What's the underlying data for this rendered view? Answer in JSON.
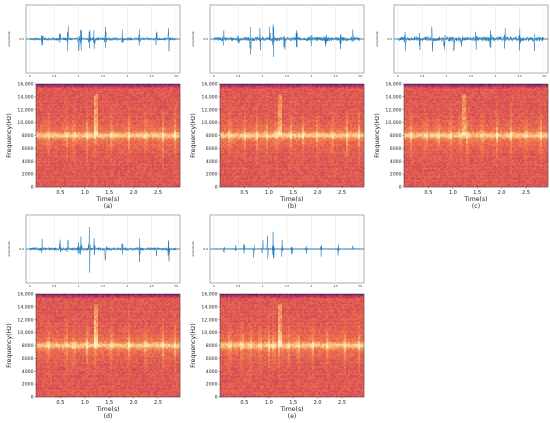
{
  "chart_data": [
    {
      "panel_label": "(a)",
      "type": "figure",
      "waveform": {
        "type": "line",
        "ylabel": "amplitude",
        "y_tick_labels": [
          "0.0"
        ],
        "x_tick_labels": [
          "0",
          "0.5",
          "1",
          "1.5",
          "2",
          "2.5",
          "3.0"
        ],
        "line_color": "#1f77b4",
        "baseline_amplitude": 0.05,
        "bursts": [
          {
            "t": 0.25,
            "a": 0.35
          },
          {
            "t": 0.62,
            "a": 0.45
          },
          {
            "t": 0.78,
            "a": 0.5
          },
          {
            "t": 1.0,
            "a": 0.45
          },
          {
            "t": 1.05,
            "a": 0.55
          },
          {
            "t": 1.22,
            "a": 0.95
          },
          {
            "t": 1.32,
            "a": 0.5
          },
          {
            "t": 1.55,
            "a": 0.45
          },
          {
            "t": 1.9,
            "a": 0.35
          },
          {
            "t": 2.25,
            "a": 0.4
          },
          {
            "t": 2.6,
            "a": 0.35
          },
          {
            "t": 2.85,
            "a": 0.45
          }
        ]
      },
      "spectrogram": {
        "type": "heatmap",
        "xlabel": "Time(s)",
        "ylabel": "Frequency(Hz)",
        "x_ticks": [
          0.5,
          1.0,
          1.5,
          2.0,
          2.5
        ],
        "x_tick_labels": [
          "0.5",
          "1.0",
          "1.5",
          "2.0",
          "2.5"
        ],
        "xlim": [
          0,
          2.95
        ],
        "y_ticks": [
          0,
          2000,
          4000,
          6000,
          8000,
          10000,
          12000,
          14000,
          16000
        ],
        "y_tick_labels": [
          "0",
          "2000",
          "4000",
          "6000",
          "8000",
          "10,000",
          "12,000",
          "14,000",
          "16,000"
        ],
        "ylim": [
          0,
          16000
        ],
        "band_center_hz": 8000,
        "transient_times_s": [
          0.25,
          0.62,
          0.78,
          1.05,
          1.22,
          1.55,
          1.9,
          2.25,
          2.6,
          2.85
        ],
        "strong_transient": {
          "t": 1.22,
          "f_low_hz": 8000,
          "f_high_hz": 14500
        },
        "colors": [
          "#3a0d5e",
          "#7d1d6c",
          "#c73c5a",
          "#e5604e",
          "#f3884f",
          "#fbd08c",
          "#fff0cc"
        ]
      }
    },
    {
      "panel_label": "(b)",
      "type": "figure",
      "waveform": {
        "type": "line",
        "ylabel": "amplitude",
        "y_tick_labels": [
          "0.0"
        ],
        "x_tick_labels": [
          "0",
          "0.5",
          "1",
          "1.5",
          "2",
          "2.5",
          "3.0"
        ],
        "line_color": "#1f77b4",
        "baseline_amplitude": 0.07,
        "bursts": [
          {
            "t": 0.2,
            "a": 0.4
          },
          {
            "t": 0.5,
            "a": 0.45
          },
          {
            "t": 0.75,
            "a": 0.55
          },
          {
            "t": 0.95,
            "a": 0.5
          },
          {
            "t": 1.15,
            "a": 0.6
          },
          {
            "t": 1.22,
            "a": 0.55
          },
          {
            "t": 1.45,
            "a": 0.5
          },
          {
            "t": 1.7,
            "a": 0.4
          },
          {
            "t": 2.0,
            "a": 0.35
          },
          {
            "t": 2.3,
            "a": 0.4
          },
          {
            "t": 2.6,
            "a": 0.35
          },
          {
            "t": 2.85,
            "a": 0.4
          }
        ]
      },
      "spectrogram": {
        "type": "heatmap",
        "xlabel": "Time(s)",
        "ylabel": "Frequency(Hz)",
        "x_ticks": [
          0.5,
          1.0,
          1.5,
          2.0,
          2.5
        ],
        "x_tick_labels": [
          "0.5",
          "1.0",
          "1.5",
          "2.0",
          "2.5"
        ],
        "xlim": [
          0,
          2.95
        ],
        "y_ticks": [
          0,
          2000,
          4000,
          6000,
          8000,
          10000,
          12000,
          14000,
          16000
        ],
        "y_tick_labels": [
          "0",
          "2000",
          "4000",
          "6000",
          "8000",
          "10,000",
          "12,000",
          "14,000",
          "16,000"
        ],
        "ylim": [
          0,
          16000
        ],
        "band_center_hz": 8000,
        "transient_times_s": [
          0.2,
          0.5,
          0.75,
          0.95,
          1.15,
          1.45,
          1.7,
          2.0,
          2.3,
          2.6,
          2.85
        ],
        "strong_transient": {
          "t": 1.22,
          "f_low_hz": 8000,
          "f_high_hz": 14500
        },
        "colors": [
          "#3a0d5e",
          "#7d1d6c",
          "#c73c5a",
          "#e5604e",
          "#f3884f",
          "#fbd08c",
          "#fff0cc"
        ]
      }
    },
    {
      "panel_label": "(c)",
      "type": "figure",
      "waveform": {
        "type": "line",
        "ylabel": "amplitude",
        "y_tick_labels": [
          "0.0"
        ],
        "x_tick_labels": [
          "0",
          "0.5",
          "1",
          "1.5",
          "2",
          "2.5",
          "3.0"
        ],
        "line_color": "#1f77b4",
        "baseline_amplitude": 0.08,
        "bursts": [
          {
            "t": 0.15,
            "a": 0.45
          },
          {
            "t": 0.45,
            "a": 0.5
          },
          {
            "t": 0.7,
            "a": 0.55
          },
          {
            "t": 0.95,
            "a": 0.6
          },
          {
            "t": 1.15,
            "a": 0.55
          },
          {
            "t": 1.3,
            "a": 0.5
          },
          {
            "t": 1.6,
            "a": 0.45
          },
          {
            "t": 1.9,
            "a": 0.4
          },
          {
            "t": 2.2,
            "a": 0.45
          },
          {
            "t": 2.5,
            "a": 0.35
          },
          {
            "t": 2.8,
            "a": 0.35
          }
        ]
      },
      "spectrogram": {
        "type": "heatmap",
        "xlabel": "Time(s)",
        "ylabel": "Frequency(Hz)",
        "x_ticks": [
          0.5,
          1.0,
          1.5,
          2.0,
          2.5
        ],
        "x_tick_labels": [
          "0.5",
          "1.0",
          "1.5",
          "2.0",
          "2.5"
        ],
        "xlim": [
          0,
          2.95
        ],
        "y_ticks": [
          0,
          2000,
          4000,
          6000,
          8000,
          10000,
          12000,
          14000,
          16000
        ],
        "y_tick_labels": [
          "0",
          "2000",
          "4000",
          "6000",
          "8000",
          "10,000",
          "12,000",
          "14,000",
          "16,000"
        ],
        "ylim": [
          0,
          16000
        ],
        "band_center_hz": 8000,
        "transient_times_s": [
          0.15,
          0.45,
          0.7,
          0.95,
          1.15,
          1.3,
          1.6,
          1.9,
          2.2,
          2.5,
          2.8
        ],
        "strong_transient": {
          "t": 1.22,
          "f_low_hz": 8000,
          "f_high_hz": 14500
        },
        "colors": [
          "#3a0d5e",
          "#7d1d6c",
          "#c73c5a",
          "#e5604e",
          "#f3884f",
          "#fbd08c",
          "#fff0cc"
        ]
      }
    },
    {
      "panel_label": "(d)",
      "type": "figure",
      "waveform": {
        "type": "line",
        "ylabel": "amplitude",
        "y_tick_labels": [
          "0.0"
        ],
        "x_tick_labels": [
          "0",
          "0.5",
          "1",
          "1.5",
          "2",
          "2.5",
          "3.0"
        ],
        "line_color": "#1f77b4",
        "baseline_amplitude": 0.05,
        "bursts": [
          {
            "t": 0.25,
            "a": 0.35
          },
          {
            "t": 0.62,
            "a": 0.45
          },
          {
            "t": 0.78,
            "a": 0.5
          },
          {
            "t": 1.0,
            "a": 0.45
          },
          {
            "t": 1.05,
            "a": 0.55
          },
          {
            "t": 1.22,
            "a": 0.95
          },
          {
            "t": 1.32,
            "a": 0.5
          },
          {
            "t": 1.55,
            "a": 0.45
          },
          {
            "t": 1.9,
            "a": 0.35
          },
          {
            "t": 2.25,
            "a": 0.4
          },
          {
            "t": 2.6,
            "a": 0.35
          },
          {
            "t": 2.85,
            "a": 0.45
          }
        ]
      },
      "spectrogram": {
        "type": "heatmap",
        "xlabel": "Time(s)",
        "ylabel": "Frequency(Hz)",
        "x_ticks": [
          0.5,
          1.0,
          1.5,
          2.0,
          2.5
        ],
        "x_tick_labels": [
          "0.5",
          "1.0",
          "1.5",
          "2.0",
          "2.5"
        ],
        "xlim": [
          0,
          2.95
        ],
        "y_ticks": [
          0,
          2000,
          4000,
          6000,
          8000,
          10000,
          12000,
          14000,
          16000
        ],
        "y_tick_labels": [
          "0",
          "2000",
          "4000",
          "6000",
          "8000",
          "10,000",
          "12,000",
          "14,000",
          "16,000"
        ],
        "ylim": [
          0,
          16000
        ],
        "band_center_hz": 8000,
        "transient_times_s": [
          0.25,
          0.62,
          0.78,
          1.05,
          1.22,
          1.55,
          1.9,
          2.25,
          2.6,
          2.85
        ],
        "strong_transient": {
          "t": 1.22,
          "f_low_hz": 8000,
          "f_high_hz": 14500
        },
        "colors": [
          "#3a0d5e",
          "#7d1d6c",
          "#c73c5a",
          "#e5604e",
          "#f3884f",
          "#fbd08c",
          "#fff0cc"
        ]
      }
    },
    {
      "panel_label": "(e)",
      "type": "figure",
      "waveform": {
        "type": "line",
        "ylabel": "amplitude",
        "y_tick_labels": [
          "0.0"
        ],
        "x_tick_labels": [
          "0",
          "0.5",
          "1",
          "1.5",
          "2",
          "2.5",
          "3.0"
        ],
        "line_color": "#1f77b4",
        "baseline_amplitude": 0.02,
        "bursts": [
          {
            "t": 0.2,
            "a": 0.2
          },
          {
            "t": 0.45,
            "a": 0.25
          },
          {
            "t": 0.62,
            "a": 0.3
          },
          {
            "t": 0.82,
            "a": 0.35
          },
          {
            "t": 1.0,
            "a": 0.35
          },
          {
            "t": 1.1,
            "a": 0.45
          },
          {
            "t": 1.22,
            "a": 0.75
          },
          {
            "t": 1.4,
            "a": 0.35
          },
          {
            "t": 1.6,
            "a": 0.3
          },
          {
            "t": 1.9,
            "a": 0.25
          },
          {
            "t": 2.2,
            "a": 0.25
          },
          {
            "t": 2.55,
            "a": 0.2
          },
          {
            "t": 2.85,
            "a": 0.2
          }
        ]
      },
      "spectrogram": {
        "type": "heatmap",
        "xlabel": "Time(s)",
        "ylabel": "Frequency(Hz)",
        "x_ticks": [
          0.5,
          1.0,
          1.5,
          2.0,
          2.5
        ],
        "x_tick_labels": [
          "0.5",
          "1.0",
          "1.5",
          "2.0",
          "2.5"
        ],
        "xlim": [
          0,
          2.95
        ],
        "y_ticks": [
          0,
          2000,
          4000,
          6000,
          8000,
          10000,
          12000,
          14000,
          16000
        ],
        "y_tick_labels": [
          "0",
          "2000",
          "4000",
          "6000",
          "8000",
          "10,000",
          "12,000",
          "14,000",
          "16,000"
        ],
        "ylim": [
          0,
          16000
        ],
        "band_center_hz": 8000,
        "transient_times_s": [
          0.2,
          0.45,
          0.62,
          0.82,
          1.0,
          1.1,
          1.22,
          1.4,
          1.6,
          1.9,
          2.2,
          2.55,
          2.85
        ],
        "strong_transient": {
          "t": 1.22,
          "f_low_hz": 8000,
          "f_high_hz": 14500
        },
        "colors": [
          "#3a0d5e",
          "#7d1d6c",
          "#c73c5a",
          "#e5604e",
          "#f3884f",
          "#fbd08c",
          "#fff0cc"
        ]
      }
    }
  ]
}
